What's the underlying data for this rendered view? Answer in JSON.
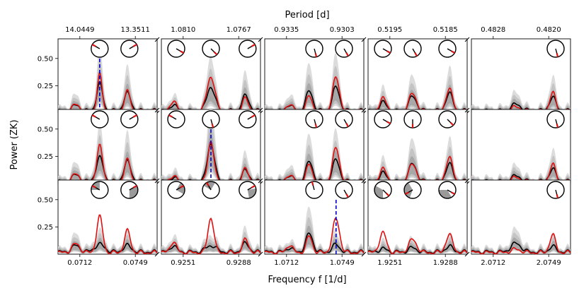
{
  "chart_data": {
    "type": "line",
    "top_axis_label": "Period [d]",
    "xlabel": "Frequency f [1/d]",
    "ylabel": "Power (ZK)",
    "y_ticks": [
      "0.25",
      "0.50"
    ],
    "ylim": [
      0,
      0.68
    ],
    "colors": {
      "data": "#e01010",
      "median": "#000000",
      "band": "#8a8a8a",
      "marker": "#0000cc"
    },
    "column_frequency_ticks": [
      [
        "0.0712",
        "0.0749"
      ],
      [
        "0.9251",
        "0.9288"
      ],
      [
        "1.0712",
        "1.0749"
      ],
      [
        "1.9251",
        "1.9288"
      ],
      [
        "2.0712",
        "2.0749"
      ]
    ],
    "column_period_ticks": [
      [
        "14.0449",
        "13.3511"
      ],
      [
        "1.0810",
        "1.0767"
      ],
      [
        "0.9335",
        "0.9303"
      ],
      [
        "0.5195",
        "0.5185"
      ],
      [
        "0.4828",
        "0.4820"
      ]
    ],
    "rows": [
      {
        "marker_column": 0,
        "panels": [
          {
            "data_peaks": [
              [
                0.18,
                0.06,
                0.04
              ],
              [
                0.42,
                0.34,
                0.025
              ],
              [
                0.7,
                0.18,
                0.03
              ]
            ],
            "median_peaks": [
              [
                0.18,
                0.05,
                0.04
              ],
              [
                0.42,
                0.25,
                0.03
              ],
              [
                0.7,
                0.16,
                0.035
              ]
            ],
            "phase_dials": [
              [
                0.42,
                20,
                300,
                null
              ],
              [
                0.72,
                20,
                60,
                null
              ]
            ]
          },
          {
            "data_peaks": [
              [
                0.12,
                0.1,
                0.03
              ],
              [
                0.5,
                0.32,
                0.04
              ],
              [
                0.85,
                0.12,
                0.03
              ]
            ],
            "median_peaks": [
              [
                0.12,
                0.06,
                0.03
              ],
              [
                0.5,
                0.22,
                0.04
              ],
              [
                0.85,
                0.14,
                0.035
              ]
            ],
            "phase_dials": [
              [
                0.15,
                20,
                120,
                null
              ],
              [
                0.5,
                20,
                135,
                null
              ],
              [
                0.87,
                20,
                60,
                null
              ]
            ]
          },
          {
            "data_peaks": [
              [
                0.25,
                0.07,
                0.03
              ],
              [
                0.45,
                0.14,
                0.03
              ],
              [
                0.72,
                0.31,
                0.035
              ]
            ],
            "median_peaks": [
              [
                0.25,
                0.06,
                0.03
              ],
              [
                0.45,
                0.18,
                0.035
              ],
              [
                0.72,
                0.22,
                0.035
              ]
            ],
            "phase_dials": [
              [
                0.5,
                18,
                165,
                null
              ],
              [
                0.8,
                18,
                150,
                null
              ]
            ]
          },
          {
            "data_peaks": [
              [
                0.15,
                0.12,
                0.035
              ],
              [
                0.45,
                0.16,
                0.04
              ],
              [
                0.82,
                0.2,
                0.035
              ]
            ],
            "median_peaks": [
              [
                0.15,
                0.08,
                0.035
              ],
              [
                0.45,
                0.13,
                0.04
              ],
              [
                0.82,
                0.16,
                0.035
              ]
            ],
            "phase_dials": [
              [
                0.15,
                18,
                120,
                null
              ],
              [
                0.45,
                18,
                150,
                null
              ],
              [
                0.8,
                18,
                120,
                null
              ]
            ]
          },
          {
            "data_peaks": [
              [
                0.45,
                0.04,
                0.05
              ],
              [
                0.82,
                0.17,
                0.03
              ]
            ],
            "median_peaks": [
              [
                0.45,
                0.06,
                0.05
              ],
              [
                0.82,
                0.12,
                0.035
              ]
            ],
            "phase_dials": [
              [
                0.85,
                18,
                165,
                null
              ]
            ]
          }
        ]
      },
      {
        "marker_column": 1,
        "panels": [
          {
            "data_peaks": [
              [
                0.18,
                0.07,
                0.04
              ],
              [
                0.42,
                0.33,
                0.03
              ],
              [
                0.7,
                0.2,
                0.03
              ]
            ],
            "median_peaks": [
              [
                0.18,
                0.06,
                0.04
              ],
              [
                0.42,
                0.22,
                0.035
              ],
              [
                0.7,
                0.18,
                0.035
              ]
            ],
            "phase_dials": [
              [
                0.42,
                20,
                300,
                null
              ],
              [
                0.72,
                20,
                60,
                null
              ]
            ]
          },
          {
            "data_peaks": [
              [
                0.12,
                0.06,
                0.03
              ],
              [
                0.5,
                0.38,
                0.03
              ],
              [
                0.85,
                0.12,
                0.03
              ]
            ],
            "median_peaks": [
              [
                0.12,
                0.04,
                0.03
              ],
              [
                0.5,
                0.35,
                0.035
              ],
              [
                0.85,
                0.1,
                0.035
              ]
            ],
            "phase_dials": [
              [
                0.15,
                20,
                300,
                null
              ],
              [
                0.5,
                20,
                165,
                null
              ],
              [
                0.87,
                20,
                60,
                null
              ]
            ]
          },
          {
            "data_peaks": [
              [
                0.25,
                0.07,
                0.03
              ],
              [
                0.45,
                0.16,
                0.03
              ],
              [
                0.72,
                0.31,
                0.035
              ]
            ],
            "median_peaks": [
              [
                0.25,
                0.06,
                0.03
              ],
              [
                0.45,
                0.18,
                0.035
              ],
              [
                0.72,
                0.2,
                0.035
              ]
            ],
            "phase_dials": [
              [
                0.5,
                18,
                165,
                null
              ],
              [
                0.8,
                18,
                150,
                null
              ]
            ]
          },
          {
            "data_peaks": [
              [
                0.15,
                0.12,
                0.035
              ],
              [
                0.45,
                0.16,
                0.04
              ],
              [
                0.82,
                0.22,
                0.035
              ]
            ],
            "median_peaks": [
              [
                0.15,
                0.08,
                0.035
              ],
              [
                0.45,
                0.16,
                0.04
              ],
              [
                0.82,
                0.16,
                0.035
              ]
            ],
            "phase_dials": [
              [
                0.15,
                18,
                120,
                null
              ],
              [
                0.45,
                18,
                180,
                null
              ],
              [
                0.8,
                18,
                135,
                null
              ]
            ]
          },
          {
            "data_peaks": [
              [
                0.45,
                0.04,
                0.05
              ],
              [
                0.82,
                0.16,
                0.03
              ]
            ],
            "median_peaks": [
              [
                0.45,
                0.05,
                0.05
              ],
              [
                0.82,
                0.11,
                0.035
              ]
            ],
            "phase_dials": [
              [
                0.85,
                18,
                165,
                null
              ]
            ]
          }
        ]
      },
      {
        "marker_column": 2,
        "panels": [
          {
            "data_peaks": [
              [
                0.18,
                0.08,
                0.04
              ],
              [
                0.42,
                0.33,
                0.03
              ],
              [
                0.7,
                0.2,
                0.03
              ]
            ],
            "median_peaks": [
              [
                0.18,
                0.06,
                0.04
              ],
              [
                0.42,
                0.07,
                0.05
              ],
              [
                0.7,
                0.06,
                0.04
              ]
            ],
            "phase_dials": [
              [
                0.42,
                20,
                300,
                [
                  270,
                  360
                ]
              ],
              [
                0.72,
                20,
                60,
                [
                  60,
                  180
                ]
              ]
            ]
          },
          {
            "data_peaks": [
              [
                0.12,
                0.1,
                0.03
              ],
              [
                0.5,
                0.32,
                0.03
              ],
              [
                0.85,
                0.12,
                0.03
              ]
            ],
            "median_peaks": [
              [
                0.12,
                0.06,
                0.03
              ],
              [
                0.5,
                0.06,
                0.05
              ],
              [
                0.85,
                0.08,
                0.035
              ]
            ],
            "phase_dials": [
              [
                0.15,
                20,
                60,
                [
                  30,
                  120
                ]
              ],
              [
                0.5,
                20,
                330,
                [
                  300,
                  30
                ]
              ],
              [
                0.87,
                20,
                60,
                [
                  80,
                  170
                ]
              ]
            ]
          },
          {
            "data_peaks": [
              [
                0.25,
                0.07,
                0.03
              ],
              [
                0.45,
                0.15,
                0.03
              ],
              [
                0.72,
                0.31,
                0.035
              ]
            ],
            "median_peaks": [
              [
                0.25,
                0.04,
                0.03
              ],
              [
                0.45,
                0.17,
                0.035
              ],
              [
                0.72,
                0.07,
                0.035
              ]
            ],
            "phase_dials": [
              [
                0.5,
                18,
                345,
                null
              ],
              [
                0.8,
                18,
                150,
                null
              ]
            ]
          },
          {
            "data_peaks": [
              [
                0.15,
                0.18,
                0.035
              ],
              [
                0.45,
                0.12,
                0.04
              ],
              [
                0.82,
                0.16,
                0.035
              ]
            ],
            "median_peaks": [
              [
                0.15,
                0.03,
                0.04
              ],
              [
                0.45,
                0.04,
                0.04
              ],
              [
                0.82,
                0.05,
                0.04
              ]
            ],
            "phase_dials": [
              [
                0.15,
                18,
                135,
                [
                  180,
                  300
                ]
              ],
              [
                0.45,
                18,
                240,
                [
                  200,
                  330
                ]
              ],
              [
                0.8,
                18,
                120,
                [
                  150,
                  270
                ]
              ]
            ]
          },
          {
            "data_peaks": [
              [
                0.45,
                0.03,
                0.05
              ],
              [
                0.82,
                0.16,
                0.03
              ]
            ],
            "median_peaks": [
              [
                0.45,
                0.08,
                0.05
              ],
              [
                0.82,
                0.05,
                0.035
              ]
            ],
            "phase_dials": [
              [
                0.85,
                18,
                165,
                null
              ]
            ]
          }
        ]
      }
    ]
  }
}
